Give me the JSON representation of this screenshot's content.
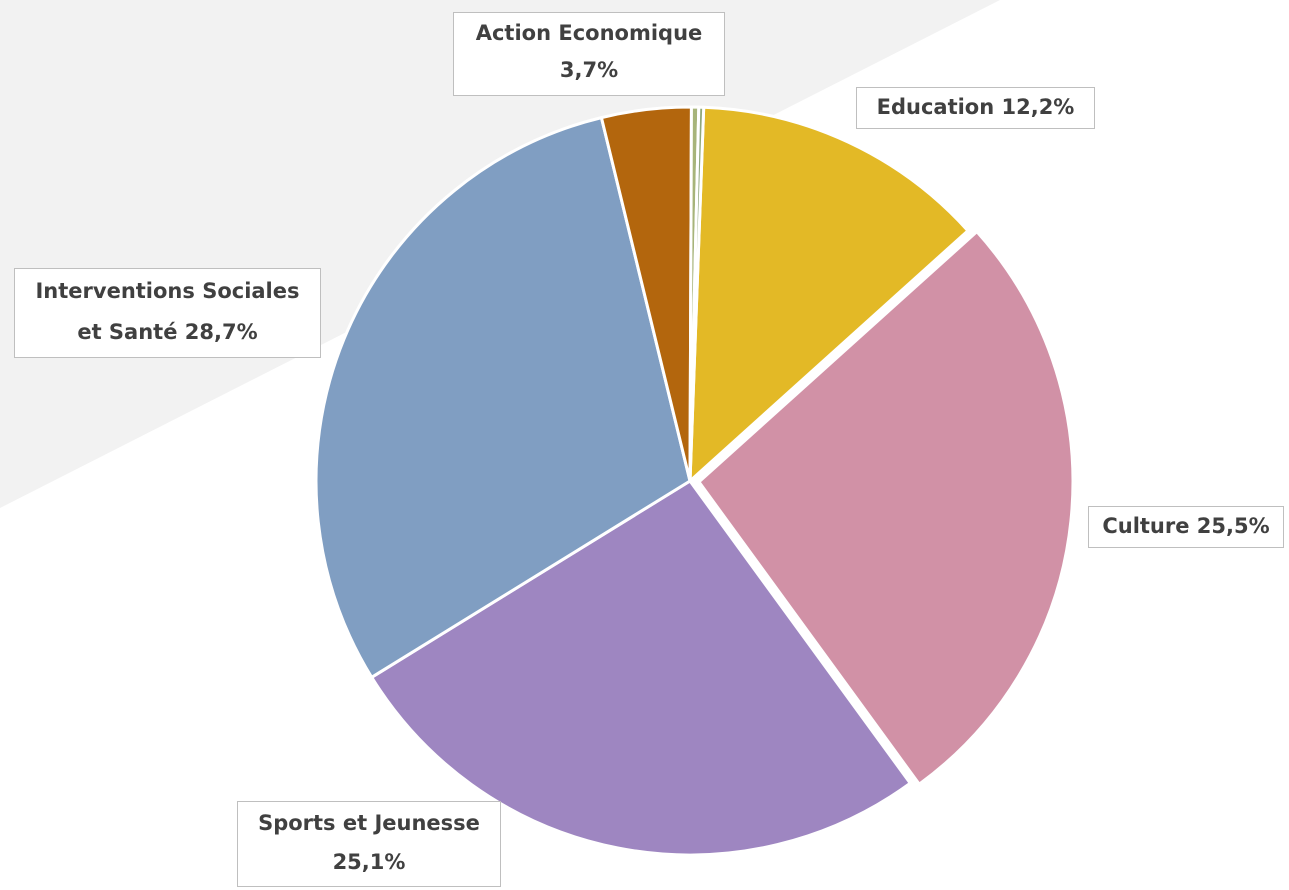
{
  "chart_data": {
    "type": "pie",
    "title": "",
    "slices": [
      {
        "label": "Education",
        "value": 12.2,
        "color": "#e3b926"
      },
      {
        "label": "Culture",
        "value": 25.5,
        "color": "#d191a6"
      },
      {
        "label": "Sports et Jeunesse",
        "value": 25.1,
        "color": "#9e86c1"
      },
      {
        "label": "Interventions Sociales et Santé",
        "value": 28.7,
        "color": "#809ec2"
      },
      {
        "label": "Action Economique",
        "value": 3.7,
        "color": "#b3660d"
      },
      {
        "label": "",
        "value": 0.3,
        "color": "#a7b47a"
      },
      {
        "label": "",
        "value": 0.2,
        "color": "#8fa77b"
      }
    ],
    "data_labels": {
      "education": "Education 12,2%",
      "culture": "Culture 25,5%",
      "sports_line1": "Sports et Jeunesse",
      "sports_line2": "25,1%",
      "interventions_line1": "Interventions Sociales",
      "interventions_line2": "et Santé  28,7%",
      "action_line1": "Action Economique",
      "action_line2": "3,7%"
    },
    "legend": "none"
  },
  "colors": {
    "background_band": "#f2f2f2",
    "label_border": "#bfbfbf",
    "label_text": "#404040"
  }
}
